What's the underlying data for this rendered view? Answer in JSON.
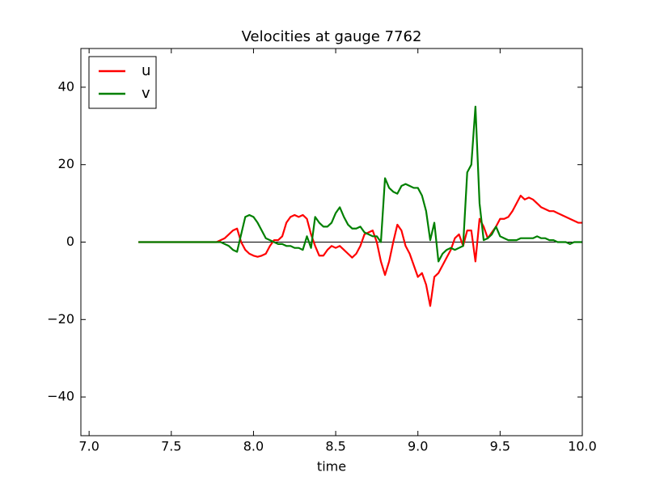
{
  "chart_data": {
    "type": "line",
    "title": "Velocities at gauge 7762",
    "xlabel": "time",
    "x": [
      7.3,
      7.325,
      7.35,
      7.375,
      7.4,
      7.425,
      7.45,
      7.475,
      7.5,
      7.525,
      7.55,
      7.575,
      7.6,
      7.625,
      7.65,
      7.675,
      7.7,
      7.725,
      7.75,
      7.775,
      7.8,
      7.825,
      7.85,
      7.875,
      7.9,
      7.925,
      7.95,
      7.975,
      8.0,
      8.025,
      8.05,
      8.075,
      8.1,
      8.125,
      8.15,
      8.175,
      8.2,
      8.225,
      8.25,
      8.275,
      8.3,
      8.325,
      8.35,
      8.375,
      8.4,
      8.425,
      8.45,
      8.475,
      8.5,
      8.525,
      8.55,
      8.575,
      8.6,
      8.625,
      8.65,
      8.675,
      8.7,
      8.725,
      8.75,
      8.775,
      8.8,
      8.825,
      8.85,
      8.875,
      8.9,
      8.925,
      8.95,
      8.975,
      9.0,
      9.025,
      9.05,
      9.075,
      9.1,
      9.125,
      9.15,
      9.175,
      9.2,
      9.225,
      9.25,
      9.275,
      9.3,
      9.325,
      9.35,
      9.375,
      9.4,
      9.425,
      9.45,
      9.475,
      9.5,
      9.525,
      9.55,
      9.575,
      9.6,
      9.625,
      9.65,
      9.675,
      9.7,
      9.725,
      9.75,
      9.775,
      9.8,
      9.825,
      9.85,
      9.875,
      9.9,
      9.925,
      9.95,
      9.975,
      10.0
    ],
    "series": [
      {
        "name": "u",
        "color": "#ff0000",
        "values": [
          0,
          0,
          0,
          0,
          0,
          0,
          0,
          0,
          0,
          0,
          0,
          0,
          0,
          0,
          0,
          0,
          0,
          0,
          0,
          0,
          0.5,
          1,
          2,
          3,
          3.5,
          0,
          -2,
          -3,
          -3.5,
          -3.8,
          -3.5,
          -3,
          -1,
          0.5,
          0.5,
          1.5,
          5,
          6.5,
          7,
          6.5,
          7,
          6,
          2,
          -1,
          -3.5,
          -3.5,
          -2,
          -1,
          -1.5,
          -1,
          -2,
          -3,
          -4,
          -3,
          -1,
          2,
          2.5,
          3,
          0,
          -5,
          -8.5,
          -5,
          0,
          4.5,
          3,
          -1,
          -3,
          -6,
          -9,
          -8,
          -11,
          -16.5,
          -9,
          -8,
          -6,
          -4,
          -2,
          1,
          2,
          -1,
          3,
          3,
          -5,
          6,
          4,
          1,
          2.5,
          4,
          6,
          6,
          6.5,
          8,
          10,
          12,
          11,
          11.5,
          11,
          10,
          9,
          8.5,
          8,
          8,
          7.5,
          7,
          6.5,
          6,
          5.5,
          5,
          5
        ]
      },
      {
        "name": "v",
        "color": "#008000",
        "values": [
          0,
          0,
          0,
          0,
          0,
          0,
          0,
          0,
          0,
          0,
          0,
          0,
          0,
          0,
          0,
          0,
          0,
          0,
          0,
          0,
          0,
          -0.5,
          -1,
          -2,
          -2.5,
          2,
          6.5,
          7,
          6.5,
          5,
          3,
          1,
          0.5,
          0,
          -0.5,
          -0.5,
          -1,
          -1,
          -1.5,
          -1.5,
          -2,
          1.5,
          -1.5,
          6.5,
          5,
          4,
          4,
          5,
          7.5,
          9,
          6.5,
          4.5,
          3.5,
          3.5,
          4,
          2.5,
          2,
          1.5,
          1.5,
          0,
          16.5,
          14,
          13,
          12.5,
          14.5,
          15,
          14.5,
          14,
          14,
          12,
          8,
          0.5,
          5,
          -5,
          -3,
          -2,
          -1.5,
          -2,
          -1.5,
          -1,
          18,
          20,
          35,
          10,
          0.5,
          1,
          2,
          4,
          1.5,
          1,
          0.5,
          0.5,
          0.5,
          1,
          1,
          1,
          1,
          1.5,
          1,
          1,
          0.5,
          0.5,
          0,
          0,
          0,
          -0.5,
          0,
          0,
          0
        ]
      }
    ],
    "hline": {
      "y": 0,
      "xmin": 7.3,
      "xmax": 10.0,
      "color": "#000000"
    },
    "xlim": [
      6.95,
      10.0
    ],
    "xticks": [
      {
        "value": 7,
        "label": "7.0"
      },
      {
        "value": 7.5,
        "label": "7.5"
      },
      {
        "value": 8,
        "label": "8.0"
      },
      {
        "value": 8.5,
        "label": "8.5"
      },
      {
        "value": 9,
        "label": "9.0"
      },
      {
        "value": 9.5,
        "label": "9.5"
      },
      {
        "value": 10,
        "label": "10.0"
      }
    ],
    "ylim": [
      -50,
      50
    ],
    "yticks": [
      {
        "value": -40,
        "label": "−40"
      },
      {
        "value": -20,
        "label": "−20"
      },
      0,
      20,
      40
    ],
    "legend": "upper left"
  }
}
